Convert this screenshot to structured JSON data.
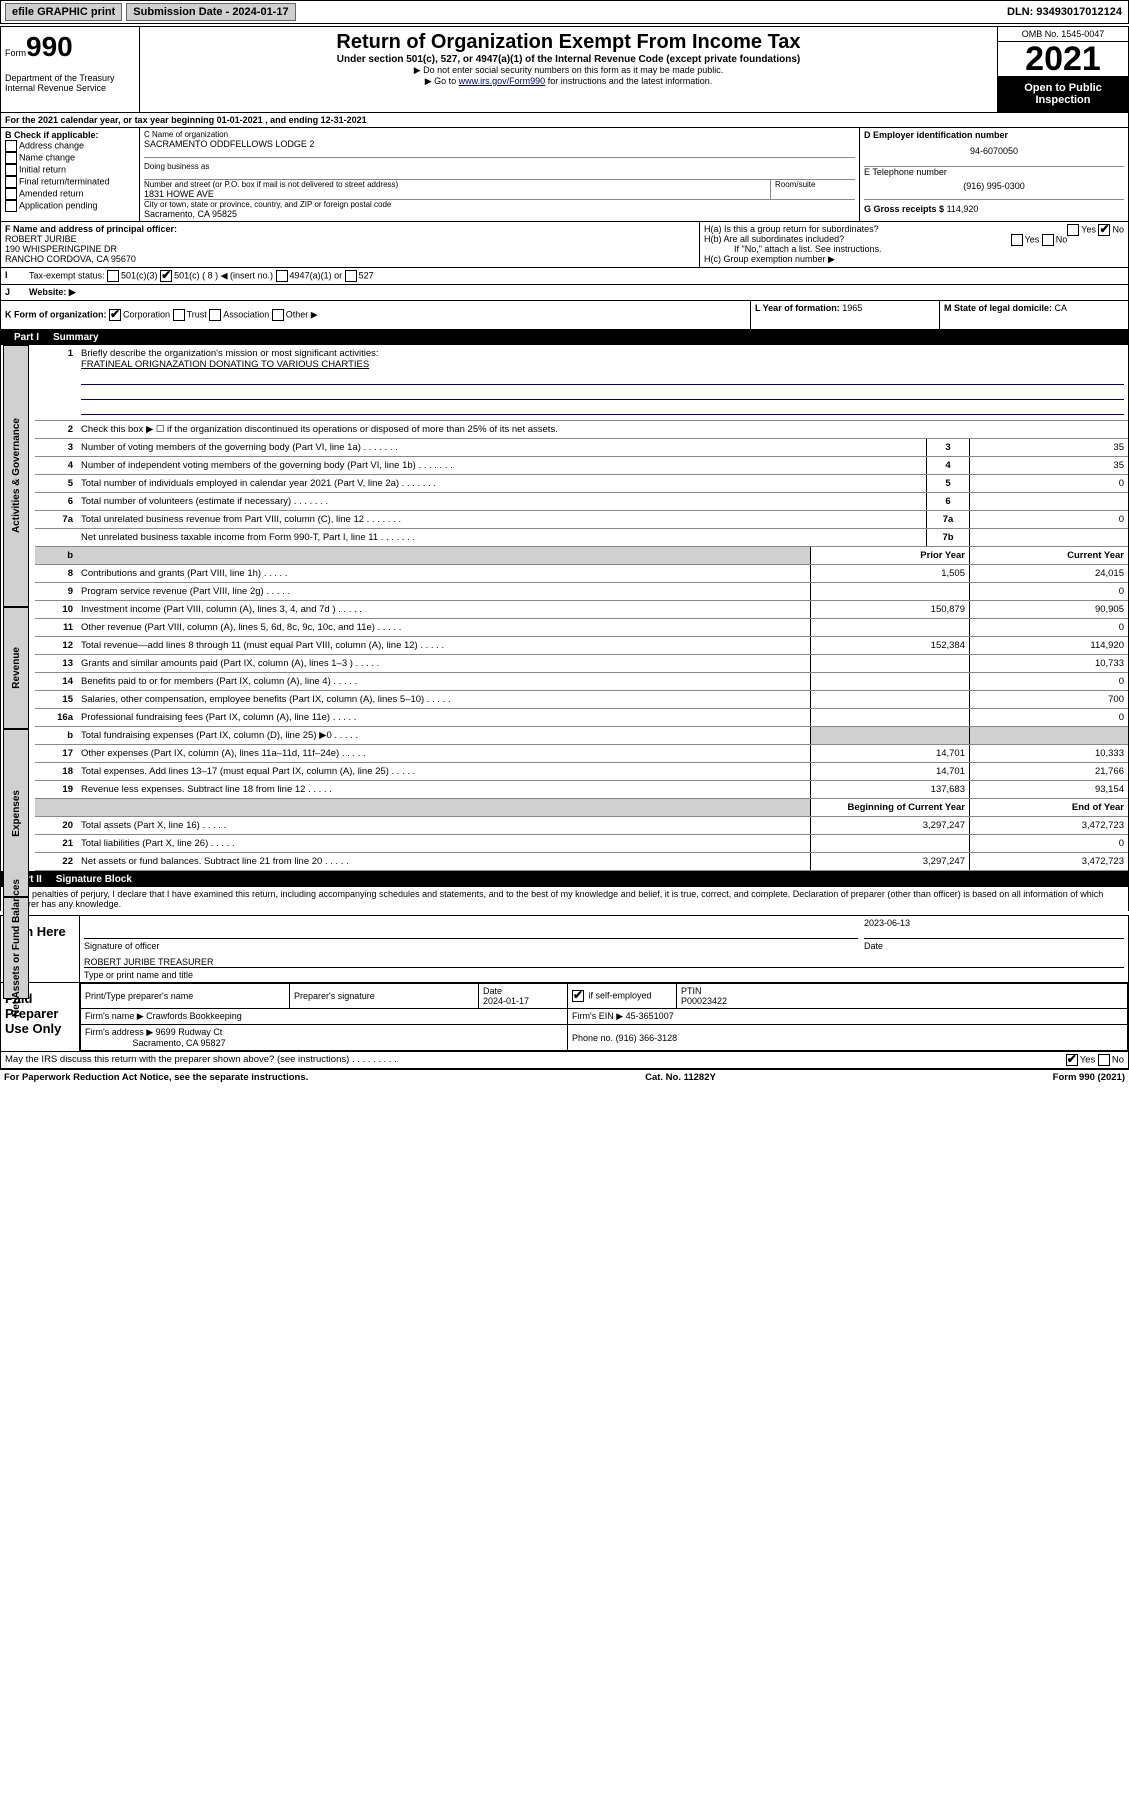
{
  "topbar": {
    "efile": "efile GRAPHIC print",
    "subdate_label": "Submission Date - 2024-01-17",
    "dln": "DLN: 93493017012124"
  },
  "header": {
    "form_label": "Form",
    "form_number": "990",
    "dept": "Department of the Treasury\nInternal Revenue Service",
    "title": "Return of Organization Exempt From Income Tax",
    "subtitle": "Under section 501(c), 527, or 4947(a)(1) of the Internal Revenue Code (except private foundations)",
    "note1": "▶ Do not enter social security numbers on this form as it may be made public.",
    "note2_prefix": "▶ Go to ",
    "note2_link": "www.irs.gov/Form990",
    "note2_suffix": " for instructions and the latest information.",
    "omb": "OMB No. 1545-0047",
    "year": "2021",
    "inspect": "Open to Public Inspection"
  },
  "line_a": "For the 2021 calendar year, or tax year beginning 01-01-2021   , and ending 12-31-2021",
  "box_b": {
    "label": "B Check if applicable:",
    "items": [
      "Address change",
      "Name change",
      "Initial return",
      "Final return/terminated",
      "Amended return",
      "Application pending"
    ]
  },
  "box_c": {
    "name_label": "C Name of organization",
    "name": "SACRAMENTO ODDFELLOWS LODGE 2",
    "dba_label": "Doing business as",
    "addr_label": "Number and street (or P.O. box if mail is not delivered to street address)",
    "room_label": "Room/suite",
    "addr": "1831 HOWE AVE",
    "city_label": "City or town, state or province, country, and ZIP or foreign postal code",
    "city": "Sacramento, CA  95825"
  },
  "box_d": {
    "label": "D Employer identification number",
    "value": "94-6070050"
  },
  "box_e": {
    "label": "E Telephone number",
    "value": "(916) 995-0300"
  },
  "box_g": {
    "label": "G Gross receipts $",
    "value": "114,920"
  },
  "box_f": {
    "label": "F  Name and address of principal officer:",
    "name": "ROBERT JURIBE",
    "addr1": "190 WHISPERINGPINE DR",
    "addr2": "RANCHO CORDOVA, CA  95670"
  },
  "box_h": {
    "ha": "H(a)  Is this a group return for subordinates?",
    "hb": "H(b)  Are all subordinates included?",
    "hb_note": "If \"No,\" attach a list. See instructions.",
    "hc": "H(c)  Group exemption number ▶"
  },
  "box_i": {
    "label": "Tax-exempt status:",
    "c3": "501(c)(3)",
    "c": "501(c) ( 8 ) ◀ (insert no.)",
    "a1": "4947(a)(1) or",
    "s527": "527"
  },
  "box_j": {
    "label": "Website: ▶"
  },
  "box_k": {
    "label": "K Form of organization:",
    "opts": [
      "Corporation",
      "Trust",
      "Association",
      "Other ▶"
    ]
  },
  "box_l": {
    "label": "L Year of formation:",
    "value": "1965"
  },
  "box_m": {
    "label": "M State of legal domicile:",
    "value": "CA"
  },
  "part1": {
    "num": "Part I",
    "title": "Summary",
    "q1": "Briefly describe the organization's mission or most significant activities:",
    "q1_ans": "FRATINEAL ORIGNAZATION DONATING TO VARIOUS CHARTIES",
    "q2": "Check this box ▶ ☐  if the organization discontinued its operations or disposed of more than 25% of its net assets.",
    "rows_single": [
      {
        "n": "3",
        "t": "Number of voting members of the governing body (Part VI, line 1a)",
        "box": "3",
        "v": "35"
      },
      {
        "n": "4",
        "t": "Number of independent voting members of the governing body (Part VI, line 1b)",
        "box": "4",
        "v": "35"
      },
      {
        "n": "5",
        "t": "Total number of individuals employed in calendar year 2021 (Part V, line 2a)",
        "box": "5",
        "v": "0"
      },
      {
        "n": "6",
        "t": "Total number of volunteers (estimate if necessary)",
        "box": "6",
        "v": ""
      },
      {
        "n": "7a",
        "t": "Total unrelated business revenue from Part VIII, column (C), line 12",
        "box": "7a",
        "v": "0"
      },
      {
        "n": "",
        "t": "Net unrelated business taxable income from Form 990-T, Part I, line 11",
        "box": "7b",
        "v": ""
      }
    ],
    "col_prior": "Prior Year",
    "col_current": "Current Year",
    "revenue": [
      {
        "n": "8",
        "t": "Contributions and grants (Part VIII, line 1h)",
        "p": "1,505",
        "c": "24,015"
      },
      {
        "n": "9",
        "t": "Program service revenue (Part VIII, line 2g)",
        "p": "",
        "c": "0"
      },
      {
        "n": "10",
        "t": "Investment income (Part VIII, column (A), lines 3, 4, and 7d )",
        "p": "150,879",
        "c": "90,905"
      },
      {
        "n": "11",
        "t": "Other revenue (Part VIII, column (A), lines 5, 6d, 8c, 9c, 10c, and 11e)",
        "p": "",
        "c": "0"
      },
      {
        "n": "12",
        "t": "Total revenue—add lines 8 through 11 (must equal Part VIII, column (A), line 12)",
        "p": "152,384",
        "c": "114,920"
      }
    ],
    "expenses": [
      {
        "n": "13",
        "t": "Grants and similar amounts paid (Part IX, column (A), lines 1–3 )",
        "p": "",
        "c": "10,733"
      },
      {
        "n": "14",
        "t": "Benefits paid to or for members (Part IX, column (A), line 4)",
        "p": "",
        "c": "0"
      },
      {
        "n": "15",
        "t": "Salaries, other compensation, employee benefits (Part IX, column (A), lines 5–10)",
        "p": "",
        "c": "700"
      },
      {
        "n": "16a",
        "t": "Professional fundraising fees (Part IX, column (A), line 11e)",
        "p": "",
        "c": "0"
      },
      {
        "n": "b",
        "t": "Total fundraising expenses (Part IX, column (D), line 25) ▶0",
        "p": "grey",
        "c": "grey"
      },
      {
        "n": "17",
        "t": "Other expenses (Part IX, column (A), lines 11a–11d, 11f–24e)",
        "p": "14,701",
        "c": "10,333"
      },
      {
        "n": "18",
        "t": "Total expenses. Add lines 13–17 (must equal Part IX, column (A), line 25)",
        "p": "14,701",
        "c": "21,766"
      },
      {
        "n": "19",
        "t": "Revenue less expenses. Subtract line 18 from line 12",
        "p": "137,683",
        "c": "93,154"
      }
    ],
    "col_begin": "Beginning of Current Year",
    "col_end": "End of Year",
    "netassets": [
      {
        "n": "20",
        "t": "Total assets (Part X, line 16)",
        "p": "3,297,247",
        "c": "3,472,723"
      },
      {
        "n": "21",
        "t": "Total liabilities (Part X, line 26)",
        "p": "",
        "c": "0"
      },
      {
        "n": "22",
        "t": "Net assets or fund balances. Subtract line 21 from line 20",
        "p": "3,297,247",
        "c": "3,472,723"
      }
    ],
    "tabs": [
      "Activities & Governance",
      "Revenue",
      "Expenses",
      "Net Assets or Fund Balances"
    ]
  },
  "part2": {
    "num": "Part II",
    "title": "Signature Block",
    "decl": "Under penalties of perjury, I declare that I have examined this return, including accompanying schedules and statements, and to the best of my knowledge and belief, it is true, correct, and complete. Declaration of preparer (other than officer) is based on all information of which preparer has any knowledge.",
    "sign_here": "Sign Here",
    "sig_officer": "Signature of officer",
    "sig_date": "Date",
    "sig_date_val": "2023-06-13",
    "officer_name": "ROBERT JURIBE TREASURER",
    "officer_label": "Type or print name and title",
    "paid": "Paid Preparer Use Only",
    "prep_name_label": "Print/Type preparer's name",
    "prep_sig_label": "Preparer's signature",
    "prep_date_label": "Date",
    "prep_date": "2024-01-17",
    "prep_check": "Check ☑ if self-employed",
    "ptin_label": "PTIN",
    "ptin": "P00023422",
    "firm_name_label": "Firm's name    ▶",
    "firm_name": "Crawfords Bookkeeping",
    "firm_ein_label": "Firm's EIN ▶",
    "firm_ein": "45-3651007",
    "firm_addr_label": "Firm's address ▶",
    "firm_addr1": "9699 Rudway Ct",
    "firm_addr2": "Sacramento, CA  95827",
    "firm_phone_label": "Phone no.",
    "firm_phone": "(916) 366-3128",
    "discuss": "May the IRS discuss this return with the preparer shown above? (see instructions)",
    "yes": "Yes",
    "no": "No"
  },
  "footer": {
    "left": "For Paperwork Reduction Act Notice, see the separate instructions.",
    "mid": "Cat. No. 11282Y",
    "right": "Form 990 (2021)"
  }
}
